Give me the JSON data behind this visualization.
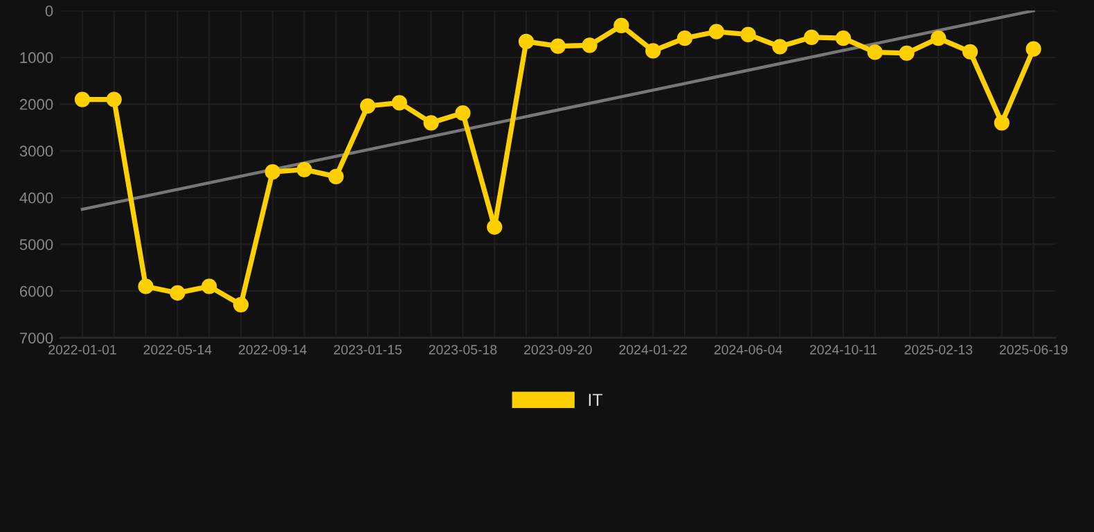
{
  "chart_data": {
    "type": "line",
    "categories": [
      "2022-01-01",
      null,
      null,
      "2022-05-14",
      null,
      null,
      "2022-09-14",
      null,
      null,
      "2023-01-15",
      null,
      null,
      "2023-05-18",
      null,
      null,
      "2023-09-20",
      null,
      null,
      "2024-01-22",
      null,
      null,
      "2024-06-04",
      null,
      null,
      "2024-10-11",
      null,
      null,
      "2025-02-13",
      null,
      null,
      "2025-06-19"
    ],
    "series": [
      {
        "name": "IT",
        "color": "#ffd000",
        "marker": "circle",
        "values": [
          1900,
          1900,
          5900,
          6040,
          5900,
          6290,
          3450,
          3400,
          3550,
          2040,
          1970,
          2400,
          2190,
          4630,
          660,
          760,
          740,
          320,
          860,
          590,
          450,
          510,
          770,
          570,
          590,
          890,
          910,
          590,
          880,
          2400,
          820
        ]
      },
      {
        "type": "line",
        "color": "#777777",
        "marker": "none",
        "values": [
          4250,
          null,
          null,
          null,
          null,
          null,
          null,
          null,
          null,
          null,
          null,
          null,
          null,
          null,
          null,
          null,
          null,
          null,
          null,
          null,
          null,
          null,
          null,
          null,
          null,
          null,
          null,
          null,
          null,
          null,
          0
        ]
      }
    ],
    "ylim": [
      7000,
      0
    ],
    "yticks": [
      0,
      1000,
      2000,
      3000,
      4000,
      5000,
      6000,
      7000
    ],
    "grid": true,
    "legend": "bottom",
    "line_style": "solid"
  }
}
